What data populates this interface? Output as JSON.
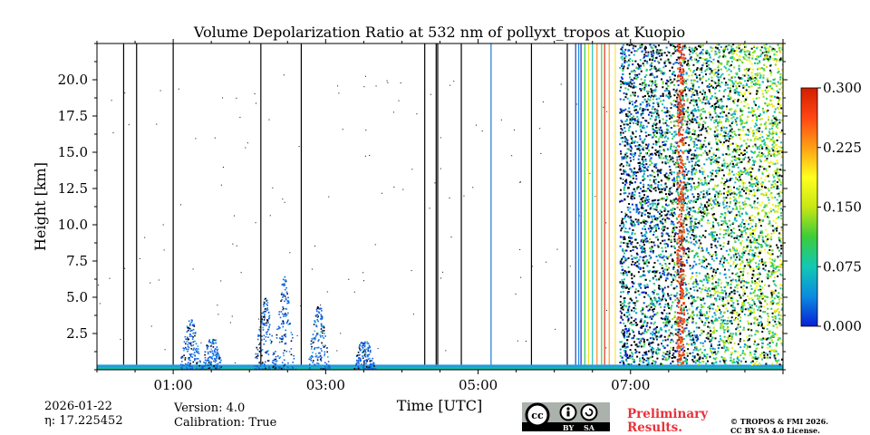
{
  "chart_data": {
    "type": "heatmap",
    "title": "Volume Depolarization Ratio at 532 nm of pollyxt_tropos at Kuopio",
    "xlabel": "Time [UTC]",
    "ylabel": "Height [km]",
    "xlim_hours": [
      0,
      9
    ],
    "ylim_km": [
      0,
      22.5
    ],
    "x_ticks": [
      {
        "hour": 1,
        "label": "01:00"
      },
      {
        "hour": 3,
        "label": "03:00"
      },
      {
        "hour": 5,
        "label": "05:00"
      },
      {
        "hour": 7,
        "label": "07:00"
      }
    ],
    "y_ticks": [
      {
        "value": 2.5,
        "label": "2.5"
      },
      {
        "value": 5.0,
        "label": "5.0"
      },
      {
        "value": 7.5,
        "label": "7.5"
      },
      {
        "value": 10.0,
        "label": "10.0"
      },
      {
        "value": 12.5,
        "label": "12.5"
      },
      {
        "value": 15.0,
        "label": "15.0"
      },
      {
        "value": 17.5,
        "label": "17.5"
      },
      {
        "value": 20.0,
        "label": "20.0"
      }
    ],
    "colorbar": {
      "min": 0.0,
      "max": 0.3,
      "ticks": [
        {
          "value": 0.0,
          "label": "0.000"
        },
        {
          "value": 0.075,
          "label": "0.075"
        },
        {
          "value": 0.15,
          "label": "0.150"
        },
        {
          "value": 0.225,
          "label": "0.225"
        },
        {
          "value": 0.3,
          "label": "0.300"
        }
      ],
      "colors": [
        "#0a1fd6",
        "#0a8be0",
        "#12c8b4",
        "#3ccc3c",
        "#c8e614",
        "#ffff1e",
        "#ffa014",
        "#ff4614",
        "#d21e00"
      ]
    },
    "vertical_lines": [
      {
        "hour": 0.35,
        "color": "#000000"
      },
      {
        "hour": 0.52,
        "color": "#000000"
      },
      {
        "hour": 1.0,
        "color": "#000000"
      },
      {
        "hour": 2.15,
        "color": "#000000"
      },
      {
        "hour": 2.68,
        "color": "#000000"
      },
      {
        "hour": 4.3,
        "color": "#000000"
      },
      {
        "hour": 4.45,
        "color": "#000000"
      },
      {
        "hour": 4.47,
        "color": "#000000"
      },
      {
        "hour": 4.78,
        "color": "#000000"
      },
      {
        "hour": 5.17,
        "color": "#1f78d0"
      },
      {
        "hour": 5.7,
        "color": "#000000"
      },
      {
        "hour": 6.17,
        "color": "#000000"
      },
      {
        "hour": 6.28,
        "color": "#1a3fc0"
      },
      {
        "hour": 6.32,
        "color": "#1e90e0"
      },
      {
        "hour": 6.35,
        "color": "#1a2bd0"
      },
      {
        "hour": 6.4,
        "color": "#2ecc55"
      },
      {
        "hour": 6.45,
        "color": "#f0e020"
      },
      {
        "hour": 6.5,
        "color": "#22c0b0"
      },
      {
        "hour": 6.56,
        "color": "#ff8c1e"
      },
      {
        "hour": 6.62,
        "color": "#3fd040"
      },
      {
        "hour": 6.66,
        "color": "#e03020"
      },
      {
        "hour": 6.72,
        "color": "#ffa020"
      },
      {
        "hour": 6.8,
        "color": "#ffe040"
      }
    ],
    "aerosol_plumes": [
      {
        "hour": 1.22,
        "top_km": 3.5
      },
      {
        "hour": 1.5,
        "top_km": 2.2
      },
      {
        "hour": 2.2,
        "top_km": 5.0
      },
      {
        "hour": 2.45,
        "top_km": 6.5
      },
      {
        "hour": 2.9,
        "top_km": 4.5
      },
      {
        "hour": 3.5,
        "top_km": 2.0
      }
    ]
  },
  "meta": {
    "date": "2026-01-22",
    "eta": "η: 17.225452",
    "version": "Version: 4.0",
    "calibration": "Calibration: True",
    "preliminary_line1": "Preliminary",
    "preliminary_line2": "Results.",
    "copyright_line1": "© TROPOS & FMI 2026.",
    "copyright_line2": "CC BY SA 4.0 License.",
    "license_badge": {
      "cc": "cc",
      "by": "BY",
      "sa": "SA"
    }
  }
}
